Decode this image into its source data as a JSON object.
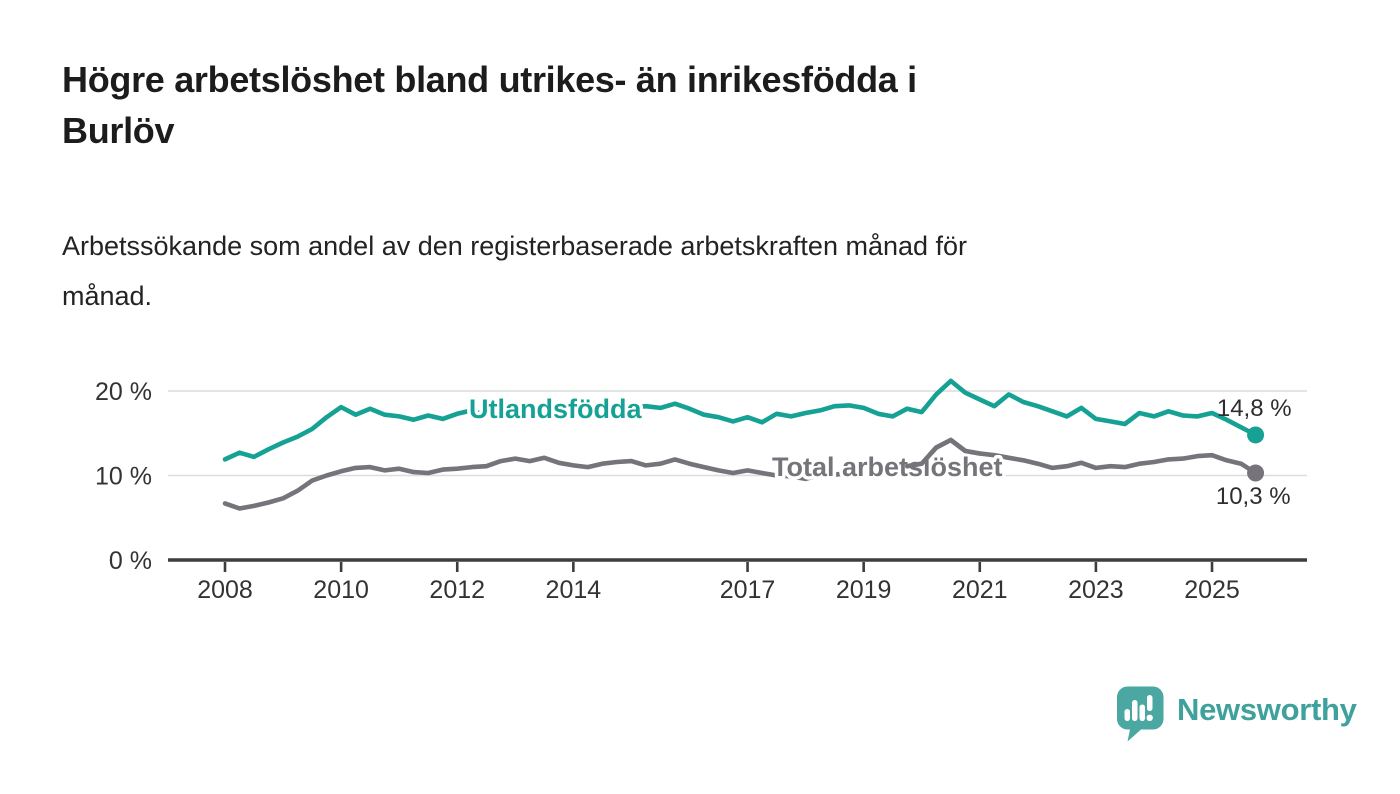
{
  "header": {
    "title_line1": "Högre arbetslöshet bland utrikes- än inrikesfödda i",
    "title_line2": "Burlöv",
    "subtitle_line1": "Arbetssökande som andel av den registerbaserade arbetskraften månad för",
    "subtitle_line2": "månad."
  },
  "footer": {
    "brand": "Newsworthy"
  },
  "colors": {
    "accent_teal": "#16a195",
    "series_gray": "#76747a",
    "grid": "#dcdcdc",
    "axis": "#3d3d3d",
    "axis_text": "#333333",
    "value_label": "#2e2e2e",
    "logo_teal": "#4aa7a1",
    "logo_text_teal": "#3fa19b",
    "title_text": "#1c1c1c"
  },
  "chart_data": {
    "type": "line",
    "title": "Högre arbetslöshet bland utrikes- än inrikesfödda i Burlöv",
    "subtitle": "Arbetssökande som andel av den registerbaserade arbetskraften månad för månad.",
    "xlabel": "",
    "ylabel": "",
    "xlim": [
      2007,
      2026.7
    ],
    "ylim": [
      0,
      23
    ],
    "grid": "horizontal",
    "legend_position": "inline",
    "x": [
      2008,
      2008.25,
      2008.5,
      2008.75,
      2009,
      2009.25,
      2009.5,
      2009.75,
      2010,
      2010.25,
      2010.5,
      2010.75,
      2011,
      2011.25,
      2011.5,
      2011.75,
      2012,
      2012.25,
      2012.5,
      2012.75,
      2013,
      2013.25,
      2013.5,
      2013.75,
      2014,
      2014.25,
      2014.5,
      2014.75,
      2015,
      2015.25,
      2015.5,
      2015.75,
      2016,
      2016.25,
      2016.5,
      2016.75,
      2017,
      2017.25,
      2017.5,
      2017.75,
      2018,
      2018.25,
      2018.5,
      2018.75,
      2019,
      2019.25,
      2019.5,
      2019.75,
      2020,
      2020.25,
      2020.5,
      2020.75,
      2021,
      2021.25,
      2021.5,
      2021.75,
      2022,
      2022.25,
      2022.5,
      2022.75,
      2023,
      2023.25,
      2023.5,
      2023.75,
      2024,
      2024.25,
      2024.5,
      2024.75,
      2025,
      2025.25,
      2025.5,
      2025.75
    ],
    "x_ticks": [
      {
        "v": 2008,
        "label": "2008"
      },
      {
        "v": 2010,
        "label": "2010"
      },
      {
        "v": 2012,
        "label": "2012"
      },
      {
        "v": 2014,
        "label": "2014"
      },
      {
        "v": 2017,
        "label": "2017"
      },
      {
        "v": 2019,
        "label": "2019"
      },
      {
        "v": 2021,
        "label": "2021"
      },
      {
        "v": 2023,
        "label": "2023"
      },
      {
        "v": 2025,
        "label": "2025"
      }
    ],
    "y_ticks": [
      {
        "v": 0,
        "label": "0 %"
      },
      {
        "v": 10,
        "label": "10 %"
      },
      {
        "v": 20,
        "label": "20 %"
      }
    ],
    "series": [
      {
        "name": "Utlandsfödda",
        "inline_label": "Utlandsfödda",
        "end_label": "14,8 %",
        "end_value": 14.8,
        "color": "#16a195",
        "values": [
          11.9,
          12.7,
          12.2,
          13.1,
          13.9,
          14.6,
          15.5,
          16.9,
          18.1,
          17.2,
          17.9,
          17.2,
          17.0,
          16.6,
          17.1,
          16.7,
          17.3,
          17.7,
          17.1,
          17.4,
          17.6,
          17.9,
          17.4,
          17.8,
          17.6,
          18.1,
          17.7,
          17.9,
          18.0,
          18.2,
          18.0,
          18.5,
          17.9,
          17.2,
          16.9,
          16.4,
          16.9,
          16.3,
          17.3,
          17.0,
          17.4,
          17.7,
          18.2,
          18.3,
          18.0,
          17.3,
          17.0,
          17.9,
          17.5,
          19.6,
          21.2,
          19.8,
          19.0,
          18.2,
          19.6,
          18.7,
          18.2,
          17.6,
          17.0,
          18.0,
          16.7,
          16.4,
          16.1,
          17.4,
          17.0,
          17.6,
          17.1,
          17.0,
          17.4,
          16.6,
          15.7,
          14.8
        ]
      },
      {
        "name": "Total arbetslöshet",
        "inline_label": "Total arbetslöshet",
        "end_label": "10,3 %",
        "end_value": 10.3,
        "color": "#76747a",
        "values": [
          6.7,
          6.1,
          6.4,
          6.8,
          7.3,
          8.2,
          9.4,
          10.0,
          10.5,
          10.9,
          11.0,
          10.6,
          10.8,
          10.4,
          10.3,
          10.7,
          10.8,
          11.0,
          11.1,
          11.7,
          12.0,
          11.7,
          12.1,
          11.5,
          11.2,
          11.0,
          11.4,
          11.6,
          11.7,
          11.2,
          11.4,
          11.9,
          11.4,
          11.0,
          10.6,
          10.3,
          10.6,
          10.3,
          10.0,
          9.9,
          9.6,
          10.1,
          10.1,
          10.3,
          10.4,
          10.6,
          10.9,
          11.1,
          11.4,
          13.3,
          14.2,
          12.9,
          12.6,
          12.4,
          12.1,
          11.8,
          11.4,
          10.9,
          11.1,
          11.5,
          10.9,
          11.1,
          11.0,
          11.4,
          11.6,
          11.9,
          12.0,
          12.3,
          12.4,
          11.8,
          11.4,
          10.3
        ]
      }
    ]
  }
}
